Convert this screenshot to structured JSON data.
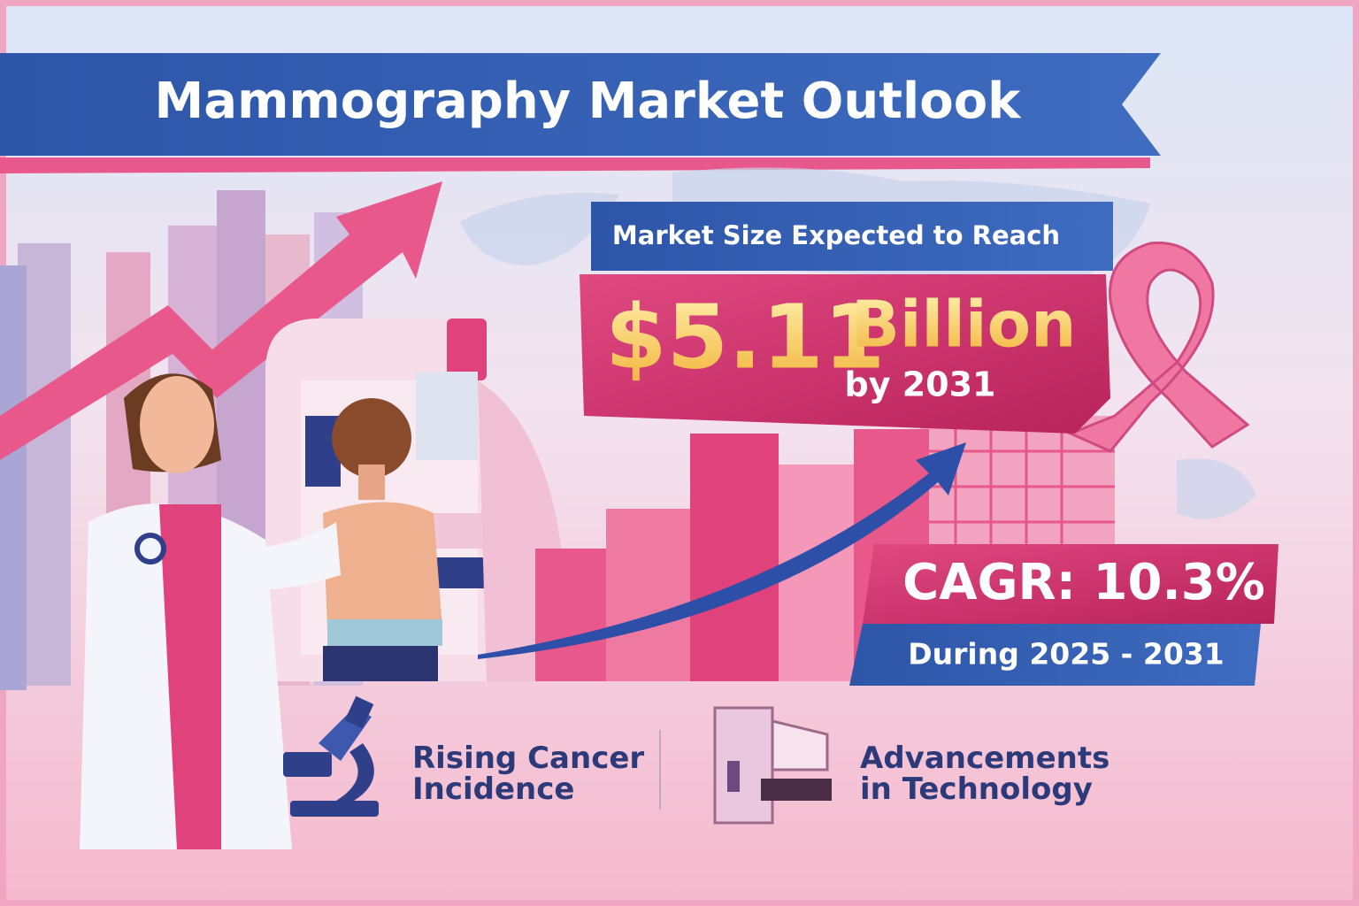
{
  "header": {
    "title": "Mammography Market Outlook"
  },
  "market": {
    "intro": "Market Size Expected to Reach",
    "value": "$5.11",
    "unit": "Billion",
    "by": "by 2031"
  },
  "growth": {
    "cagr": "CAGR: 10.3%",
    "period": "During 2025 - 2031"
  },
  "drivers": [
    {
      "lines": [
        "Rising Cancer",
        "Incidence"
      ]
    },
    {
      "lines": [
        "Advancements",
        "in Technology"
      ]
    }
  ]
}
